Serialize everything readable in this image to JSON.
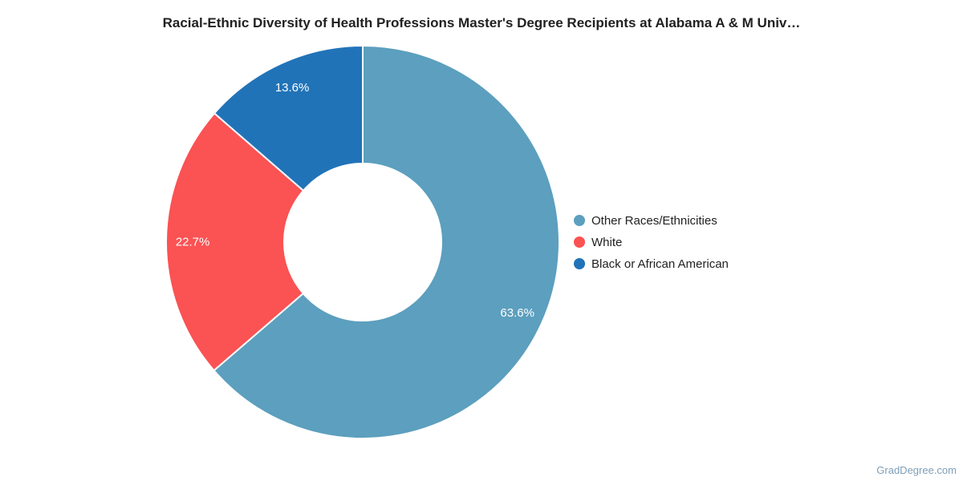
{
  "title": "Racial-Ethnic Diversity of Health Professions Master's Degree Recipients at Alabama A & M Univ…",
  "watermark": "GradDegree.com",
  "colors": {
    "background": "#ffffff",
    "title_color": "#212121",
    "legend_text": "#212121",
    "watermark_color": "#7d9eb7",
    "slice_border": "#ffffff",
    "slice_label": "#ffffff"
  },
  "chart_data": {
    "type": "pie",
    "subtype": "donut",
    "title": "Racial-Ethnic Diversity of Health Professions Master's Degree Recipients at Alabama A & M Univ…",
    "legend_position": "right",
    "start_angle_deg": 0,
    "direction": "clockwise",
    "inner_radius_ratio": 0.4,
    "label_radius_ratio": 0.865,
    "slices": [
      {
        "label": "Other Races/Ethnicities",
        "value": 63.6,
        "display": "63.6%",
        "color": "#5c9fbe"
      },
      {
        "label": "White",
        "value": 22.7,
        "display": "22.7%",
        "color": "#fb5253"
      },
      {
        "label": "Black or African American",
        "value": 13.6,
        "display": "13.6%",
        "color": "#2173b8"
      }
    ]
  }
}
